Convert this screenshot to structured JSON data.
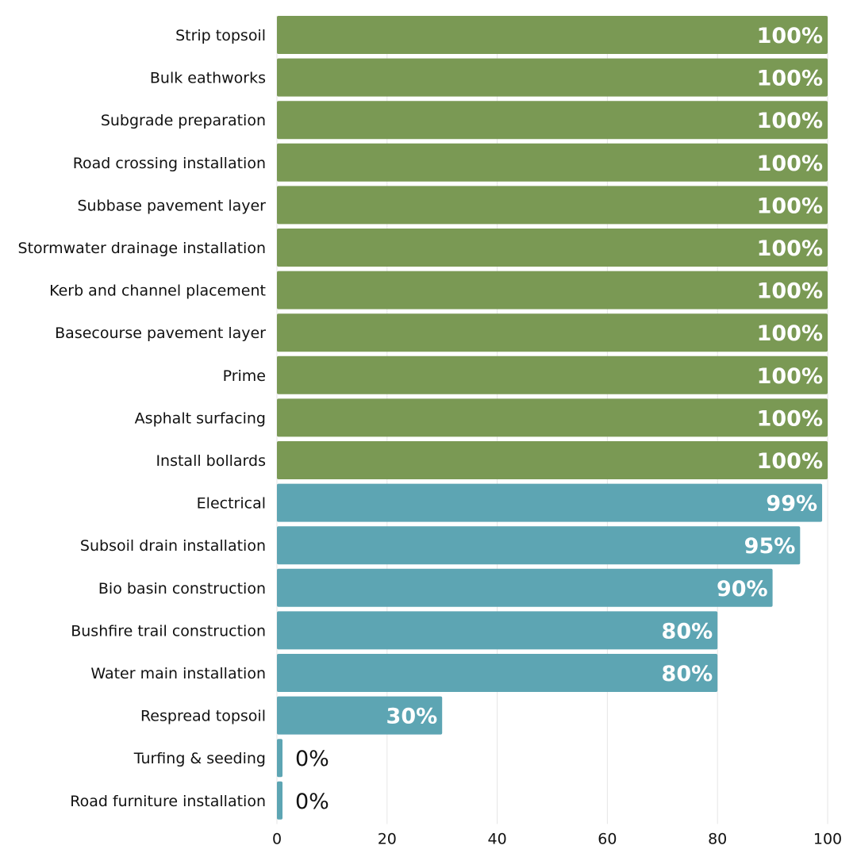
{
  "chart_data": {
    "type": "bar",
    "orientation": "horizontal",
    "title": "",
    "xlabel": "",
    "ylabel": "",
    "xlim": [
      0,
      100
    ],
    "x_ticks": [
      "0",
      "20",
      "40",
      "60",
      "80",
      "100"
    ],
    "grid": "vertical",
    "legend": "none",
    "colors": {
      "complete": "#7a9954",
      "in_progress": "#5da5b3"
    },
    "categories": [
      "Strip topsoil",
      "Bulk eathworks",
      "Subgrade preparation",
      "Road crossing installation",
      "Subbase pavement layer",
      "Stormwater drainage installation",
      "Kerb and channel placement",
      "Basecourse pavement layer",
      "Prime",
      "Asphalt surfacing",
      "Install bollards",
      "Electrical",
      "Subsoil drain installation",
      "Bio basin construction",
      "Bushfire trail construction",
      "Water main installation",
      "Respread topsoil",
      "Turfing & seeding",
      "Road furniture installation"
    ],
    "values": [
      100,
      100,
      100,
      100,
      100,
      100,
      100,
      100,
      100,
      100,
      100,
      99,
      95,
      90,
      80,
      80,
      30,
      0,
      0
    ],
    "value_labels": [
      "100%",
      "100%",
      "100%",
      "100%",
      "100%",
      "100%",
      "100%",
      "100%",
      "100%",
      "100%",
      "100%",
      "99%",
      "95%",
      "90%",
      "80%",
      "80%",
      "30%",
      "0%",
      "0%"
    ]
  }
}
